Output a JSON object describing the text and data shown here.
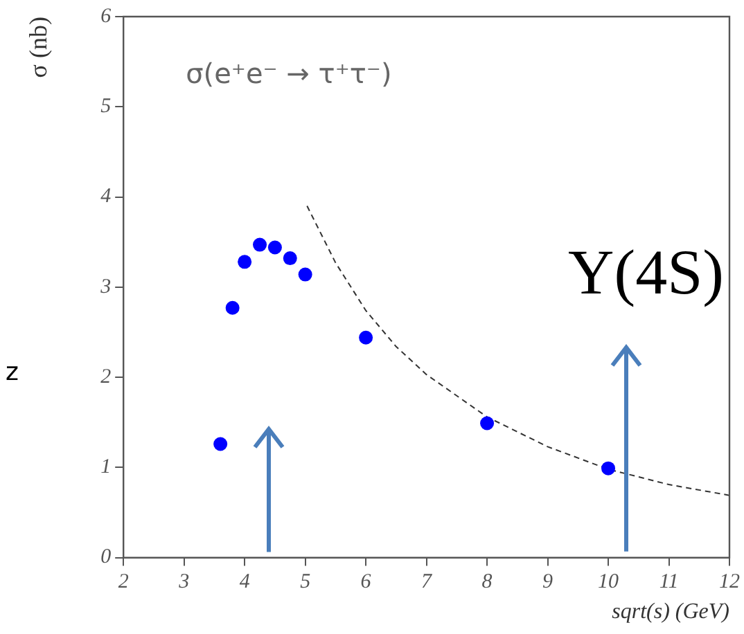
{
  "chart_data": {
    "type": "scatter",
    "xlabel": "sqrt(s) (GeV)",
    "ylabel": "σ (nb)",
    "annotations": [
      "σ(e⁺e⁻ → τ⁺τ⁻)",
      "Y(4S)",
      "z"
    ],
    "xlim": [
      2,
      12
    ],
    "xticks": [
      2,
      3,
      4,
      5,
      6,
      7,
      8,
      9,
      10,
      11,
      12
    ],
    "ylim": [
      0,
      6
    ],
    "yticks": [
      0,
      1,
      2,
      3,
      4,
      5,
      6
    ],
    "grid": false,
    "legend": false,
    "series": [
      {
        "type": "scatter",
        "color": "#0000ff",
        "marker": "circle",
        "x": [
          3.6,
          3.8,
          4.0,
          4.25,
          4.5,
          4.75,
          5.0,
          6,
          8,
          10
        ],
        "values": [
          1.26,
          2.77,
          3.28,
          3.47,
          3.44,
          3.32,
          3.14,
          2.44,
          1.49,
          0.99
        ]
      },
      {
        "type": "line",
        "color": "#333333",
        "marker": "none",
        "line_style": "dashed",
        "x": [
          5.03,
          5.5,
          6,
          6.5,
          7,
          8,
          9,
          10,
          11,
          12
        ],
        "values": [
          3.9,
          3.27,
          2.74,
          2.34,
          2.03,
          1.56,
          1.23,
          0.98,
          0.81,
          0.69
        ]
      }
    ]
  }
}
